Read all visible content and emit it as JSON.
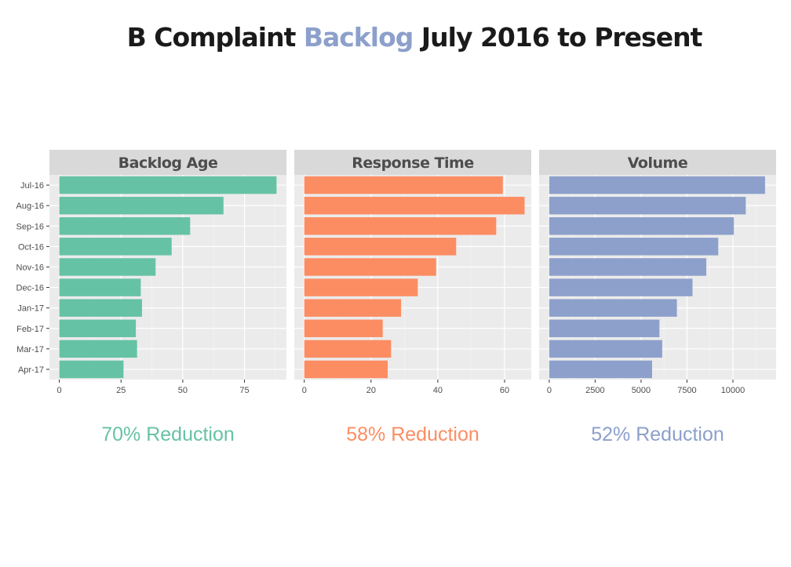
{
  "title": {
    "prefix": "B Complaint ",
    "accent": "Backlog",
    "suffix": " July 2016 to Present",
    "accent_color": "#8da0cb"
  },
  "chart_data": {
    "type": "bar",
    "orientation": "horizontal",
    "categories": [
      "Jul-16",
      "Aug-16",
      "Sep-16",
      "Oct-16",
      "Nov-16",
      "Dec-16",
      "Jan-17",
      "Feb-17",
      "Mar-17",
      "Apr-17"
    ],
    "panels": [
      {
        "title": "Backlog Age",
        "color": "#66c2a5",
        "values": [
          88,
          66.5,
          53,
          45.5,
          39,
          33,
          33.5,
          31,
          31.5,
          26
        ],
        "xlim": [
          -4,
          92
        ],
        "ticks": [
          0,
          25,
          50,
          75
        ],
        "reduction": "70% Reduction"
      },
      {
        "title": "Response Time",
        "color": "#fc8d62",
        "values": [
          59.5,
          66,
          57.5,
          45.5,
          39.5,
          34,
          29,
          23.5,
          26,
          25
        ],
        "xlim": [
          -3,
          68
        ],
        "ticks": [
          0,
          20,
          40,
          60
        ],
        "reduction": "58% Reduction"
      },
      {
        "title": "Volume",
        "color": "#8da0cb",
        "values": [
          11750,
          10700,
          10050,
          9200,
          8550,
          7800,
          6950,
          6000,
          6150,
          5600
        ],
        "xlim": [
          -550,
          12350
        ],
        "ticks": [
          0,
          2500,
          5000,
          7500,
          10000
        ],
        "reduction": "52% Reduction"
      }
    ],
    "grid": true,
    "legend": "none"
  }
}
